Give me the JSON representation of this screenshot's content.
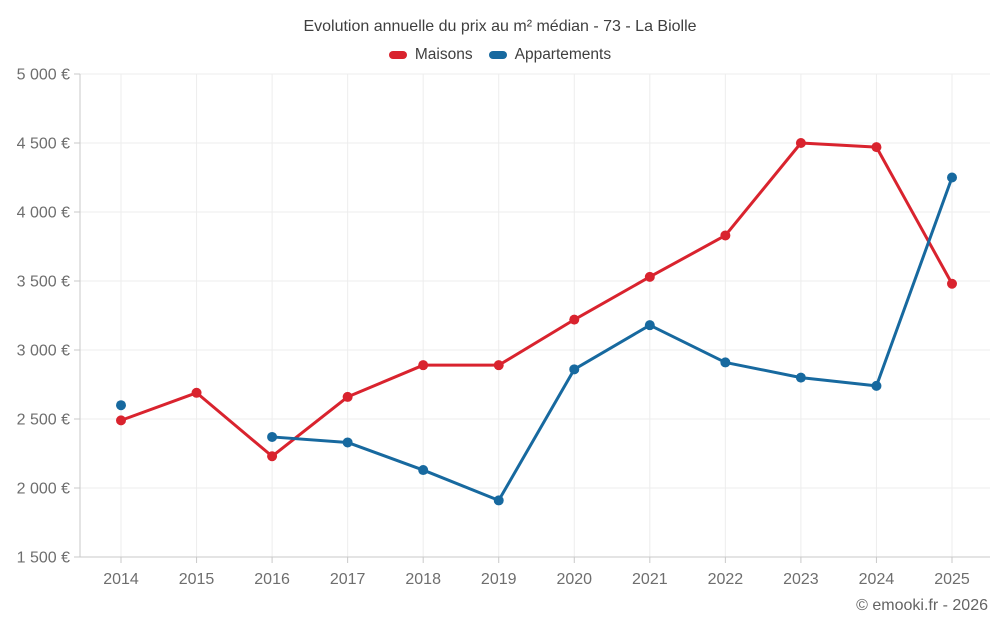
{
  "chart": {
    "title": "Evolution annuelle du prix au m² médian - 73 - La Biolle",
    "footer": "© emooki.fr - 2026"
  },
  "chart_data": {
    "type": "line",
    "title": "Evolution annuelle du prix au m² médian - 73 - La Biolle",
    "categories": [
      "2014",
      "2015",
      "2016",
      "2017",
      "2018",
      "2019",
      "2020",
      "2021",
      "2022",
      "2023",
      "2024",
      "2025"
    ],
    "series": [
      {
        "name": "Maisons",
        "color": "#d9232e",
        "values": [
          2490,
          2690,
          2230,
          2660,
          2890,
          2890,
          3220,
          3530,
          3830,
          4500,
          4470,
          3480
        ]
      },
      {
        "name": "Appartements",
        "color": "#17699f",
        "values": [
          2600,
          null,
          2370,
          2330,
          2130,
          1910,
          2860,
          3180,
          2910,
          2800,
          2740,
          4250
        ]
      }
    ],
    "xlabel": "",
    "ylabel": "",
    "ylim": [
      1500,
      5000
    ],
    "yticks": [
      1500,
      2000,
      2500,
      3000,
      3500,
      4000,
      4500,
      5000
    ],
    "ytick_labels": [
      "1 500 €",
      "2 000 €",
      "2 500 €",
      "3 000 €",
      "3 500 €",
      "4 000 €",
      "4 500 €",
      "5 000 €"
    ],
    "grid": true,
    "legend_position": "top",
    "marker": "circle",
    "colors": {
      "grid": "#ededed",
      "axis": "#c9c9c9",
      "tick_label": "#6e6e6e",
      "title_text": "#3f3f3f",
      "footer_text": "#646464"
    }
  }
}
